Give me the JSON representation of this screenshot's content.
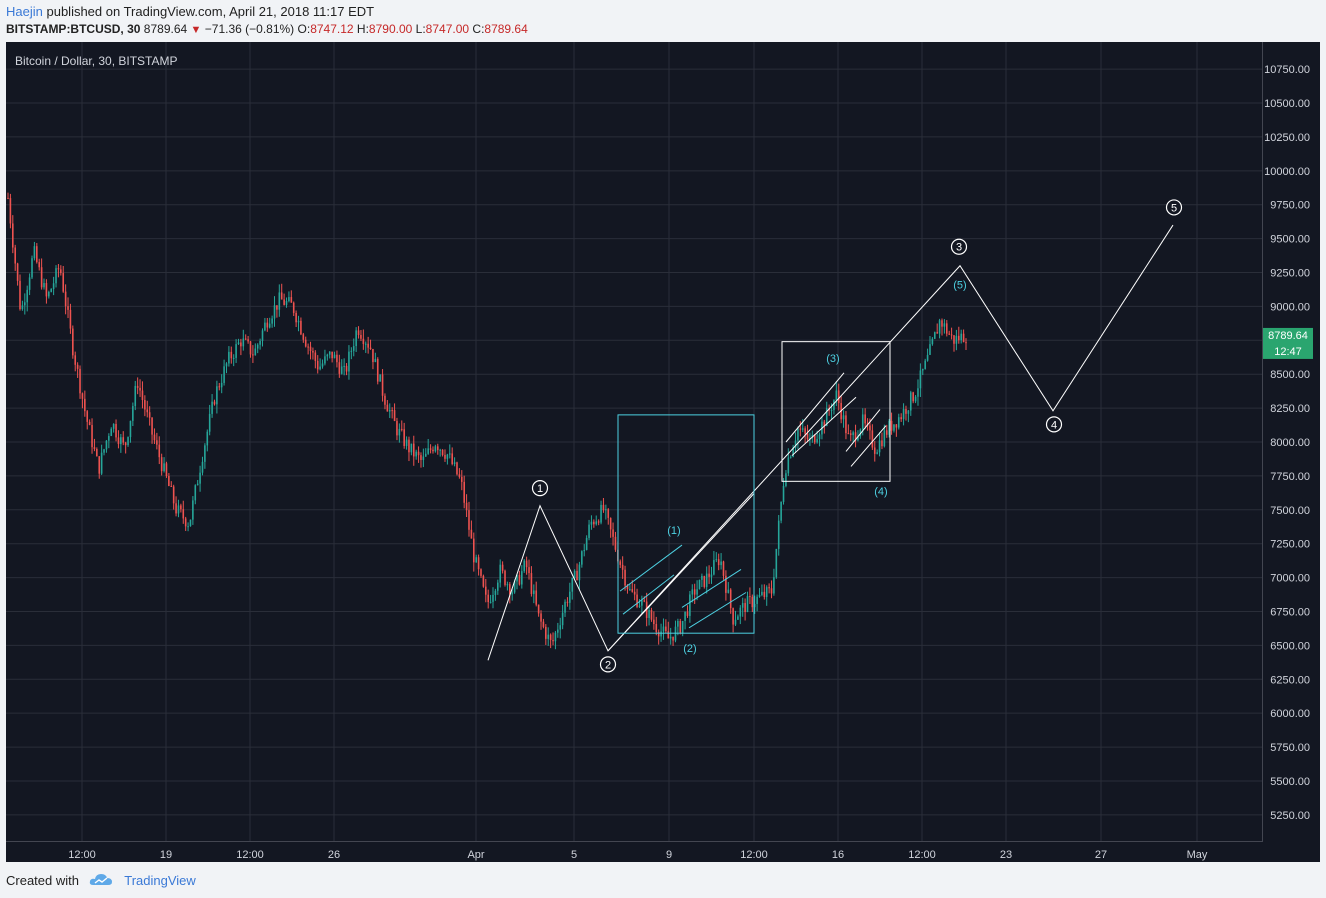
{
  "header": {
    "author": "Haejin",
    "published_text": "published on TradingView.com, April 21, 2018 11:17 EDT",
    "symbol": "BITSTAMP:BTCUSD, 30",
    "last": "8789.64",
    "change": "−71.36 (−0.81%)",
    "o_label": "O:",
    "o_value": "8747.12",
    "h_label": "H:",
    "h_value": "8790.00",
    "l_label": "L:",
    "l_value": "8747.00",
    "c_label": "C:",
    "c_value": "8789.64"
  },
  "footer": {
    "created_with": "Created with",
    "brand": "TradingView"
  },
  "colors": {
    "background": "#131722",
    "grid": "#2a2e39",
    "up": "#26a69a",
    "down": "#ef5350",
    "wave_line": "#ffffff",
    "sub_wave": "#4dd0e1",
    "price_tag": "#2aa56f"
  },
  "chart_data": {
    "type": "candlestick",
    "title": "Bitcoin / Dollar, 30, BITSTAMP",
    "ylim": [
      5050,
      10950
    ],
    "y_ticks": [
      5250,
      5500,
      5750,
      6000,
      6250,
      6500,
      6750,
      7000,
      7250,
      7500,
      7750,
      8000,
      8250,
      8500,
      8750,
      9000,
      9250,
      9500,
      9750,
      10000,
      10250,
      10500,
      10750
    ],
    "y_tick_labels": [
      "5250.00",
      "5500.00",
      "5750.00",
      "6000.00",
      "6250.00",
      "6500.00",
      "6750.00",
      "7000.00",
      "7250.00",
      "7500.00",
      "7750.00",
      "8000.00",
      "8250.00",
      "8500.00",
      "8750.00",
      "9000.00",
      "9250.00",
      "9500.00",
      "9750.00",
      "10000.00",
      "10250.00",
      "10500.00",
      "10750.00"
    ],
    "x_labels": [
      "12:00",
      "19",
      "12:00",
      "26",
      "Apr",
      "5",
      "9",
      "12:00",
      "16",
      "12:00",
      "23",
      "27",
      "May"
    ],
    "current_price": "8789.64",
    "countdown": "12:47",
    "price_path": [
      [
        0,
        9800
      ],
      [
        1,
        8950
      ],
      [
        2,
        9400
      ],
      [
        3,
        9050
      ],
      [
        4,
        9300
      ],
      [
        5,
        8700
      ],
      [
        6,
        8200
      ],
      [
        7,
        7800
      ],
      [
        8,
        8150
      ],
      [
        9,
        7950
      ],
      [
        10,
        8450
      ],
      [
        11,
        8100
      ],
      [
        12,
        7800
      ],
      [
        13,
        7500
      ],
      [
        14,
        7400
      ],
      [
        15,
        7900
      ],
      [
        16,
        8350
      ],
      [
        17,
        8600
      ],
      [
        18,
        8750
      ],
      [
        19,
        8650
      ],
      [
        20,
        8900
      ],
      [
        21,
        9050
      ],
      [
        22,
        9000
      ],
      [
        23,
        8750
      ],
      [
        24,
        8550
      ],
      [
        25,
        8650
      ],
      [
        26,
        8500
      ],
      [
        27,
        8850
      ],
      [
        28,
        8700
      ],
      [
        29,
        8350
      ],
      [
        30,
        8100
      ],
      [
        31,
        7950
      ],
      [
        32,
        7850
      ],
      [
        33,
        8000
      ],
      [
        34,
        7900
      ],
      [
        35,
        7700
      ],
      [
        36,
        7150
      ],
      [
        37,
        6800
      ],
      [
        38,
        7050
      ],
      [
        39,
        6900
      ],
      [
        40,
        7100
      ],
      [
        41,
        6700
      ],
      [
        42,
        6500
      ],
      [
        43,
        6800
      ],
      [
        44,
        7050
      ],
      [
        45,
        7400
      ],
      [
        46,
        7500
      ],
      [
        47,
        7200
      ],
      [
        48,
        6900
      ],
      [
        49,
        6800
      ],
      [
        50,
        6650
      ],
      [
        51,
        6550
      ],
      [
        52,
        6650
      ],
      [
        53,
        6900
      ],
      [
        54,
        7000
      ],
      [
        55,
        7150
      ],
      [
        56,
        6700
      ],
      [
        57,
        6800
      ],
      [
        58,
        6850
      ],
      [
        59,
        6900
      ],
      [
        60,
        7800
      ],
      [
        61,
        8100
      ],
      [
        62,
        8000
      ],
      [
        63,
        8150
      ],
      [
        64,
        8350
      ],
      [
        65,
        8000
      ],
      [
        66,
        8150
      ],
      [
        67,
        7950
      ],
      [
        68,
        8100
      ],
      [
        69,
        8200
      ],
      [
        70,
        8350
      ],
      [
        71,
        8600
      ],
      [
        72,
        8900
      ],
      [
        73,
        8750
      ],
      [
        74,
        8790
      ]
    ],
    "wave_labels": {
      "w1": "1",
      "w2": "2",
      "w3": "3",
      "w4": "4",
      "w5": "5",
      "s1": "(1)",
      "s2": "(2)",
      "s3": "(3)",
      "s4": "(4)",
      "s5": "(5)"
    }
  }
}
